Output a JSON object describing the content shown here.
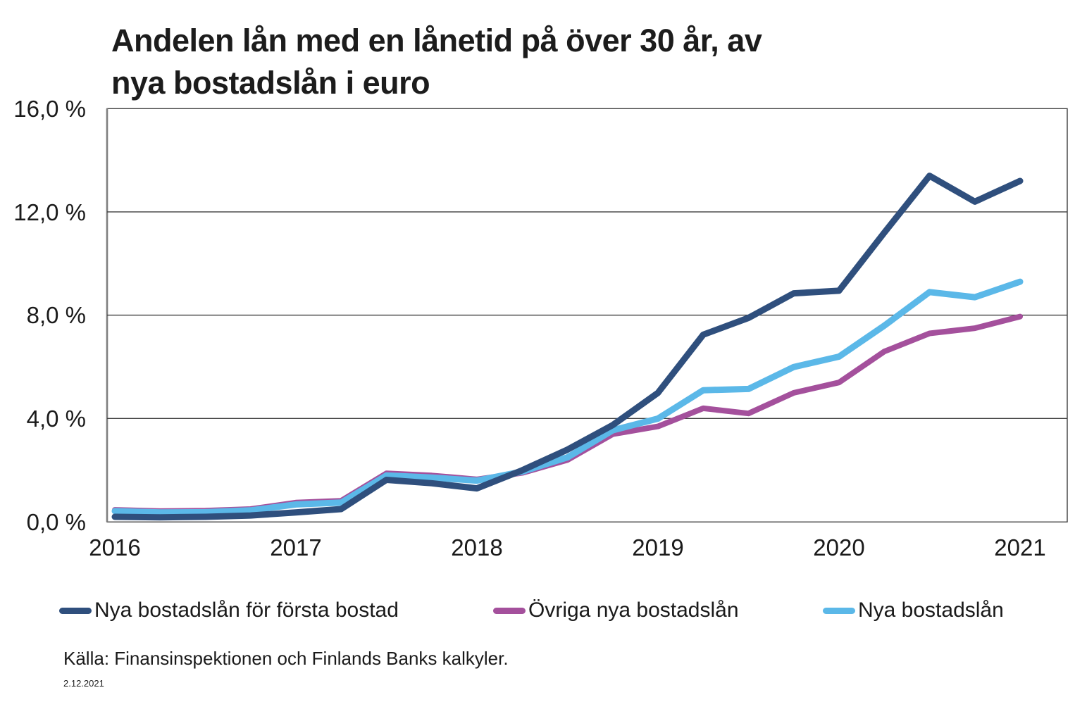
{
  "title": {
    "line1": "Andelen lån med en lånetid på över 30 år, av",
    "line2": "nya bostadslån i euro"
  },
  "source": "Källa: Finansinspektionen och Finlands Banks kalkyler.",
  "date_note": "2.12.2021",
  "colors": {
    "first_home_line": "#2F4F7D",
    "other_loans_line": "#A4509C",
    "all_loans_line": "#5BB8E8",
    "grid": "#3F3F3F",
    "text": "#1A1A1A"
  },
  "chart_data": {
    "type": "line",
    "title": "Andelen lån med en lånetid på över 30 år, av nya bostadslån i euro",
    "ylabel": "",
    "xlabel": "",
    "ylim": [
      0,
      16
    ],
    "grid": "horizontal",
    "legend_position": "bottom",
    "y_tick_labels": [
      "16,0 %",
      "12,0 %",
      "8,0 %",
      "4,0 %",
      "0,0 %"
    ],
    "x_tick_labels": [
      "2016",
      "2017",
      "2018",
      "2019",
      "2020",
      "2021"
    ],
    "x": [
      "2016-Q1",
      "2016-Q2",
      "2016-Q3",
      "2016-Q4",
      "2017-Q1",
      "2017-Q2",
      "2017-Q3",
      "2017-Q4",
      "2018-Q1",
      "2018-Q2",
      "2018-Q3",
      "2018-Q4",
      "2019-Q1",
      "2019-Q2",
      "2019-Q3",
      "2019-Q4",
      "2020-Q1",
      "2020-Q2",
      "2020-Q3",
      "2020-Q4",
      "2021-Q1"
    ],
    "series": [
      {
        "name": "Nya bostadslån för första bostad",
        "color": "#2F4F7D",
        "values": [
          0.2,
          0.18,
          0.2,
          0.25,
          0.37,
          0.5,
          1.63,
          1.5,
          1.3,
          2.0,
          2.8,
          3.75,
          5.0,
          7.25,
          7.9,
          8.85,
          8.95,
          11.2,
          13.4,
          12.4,
          13.2
        ]
      },
      {
        "name": "Övriga nya bostadslån",
        "color": "#A4509C",
        "values": [
          0.47,
          0.42,
          0.44,
          0.5,
          0.75,
          0.82,
          1.88,
          1.8,
          1.65,
          1.9,
          2.4,
          3.4,
          3.7,
          4.4,
          4.2,
          5.0,
          5.4,
          6.6,
          7.3,
          7.5,
          7.95
        ]
      },
      {
        "name": "Nya bostadslån",
        "color": "#5BB8E8",
        "values": [
          0.42,
          0.37,
          0.38,
          0.45,
          0.68,
          0.75,
          1.8,
          1.72,
          1.6,
          1.95,
          2.5,
          3.55,
          4.0,
          5.1,
          5.15,
          6.0,
          6.4,
          7.6,
          8.9,
          8.7,
          9.3
        ]
      }
    ]
  },
  "legend": {
    "items": [
      {
        "label": "Nya bostadslån för första bostad"
      },
      {
        "label": "Övriga nya bostadslån"
      },
      {
        "label": "Nya bostadslån"
      }
    ]
  }
}
